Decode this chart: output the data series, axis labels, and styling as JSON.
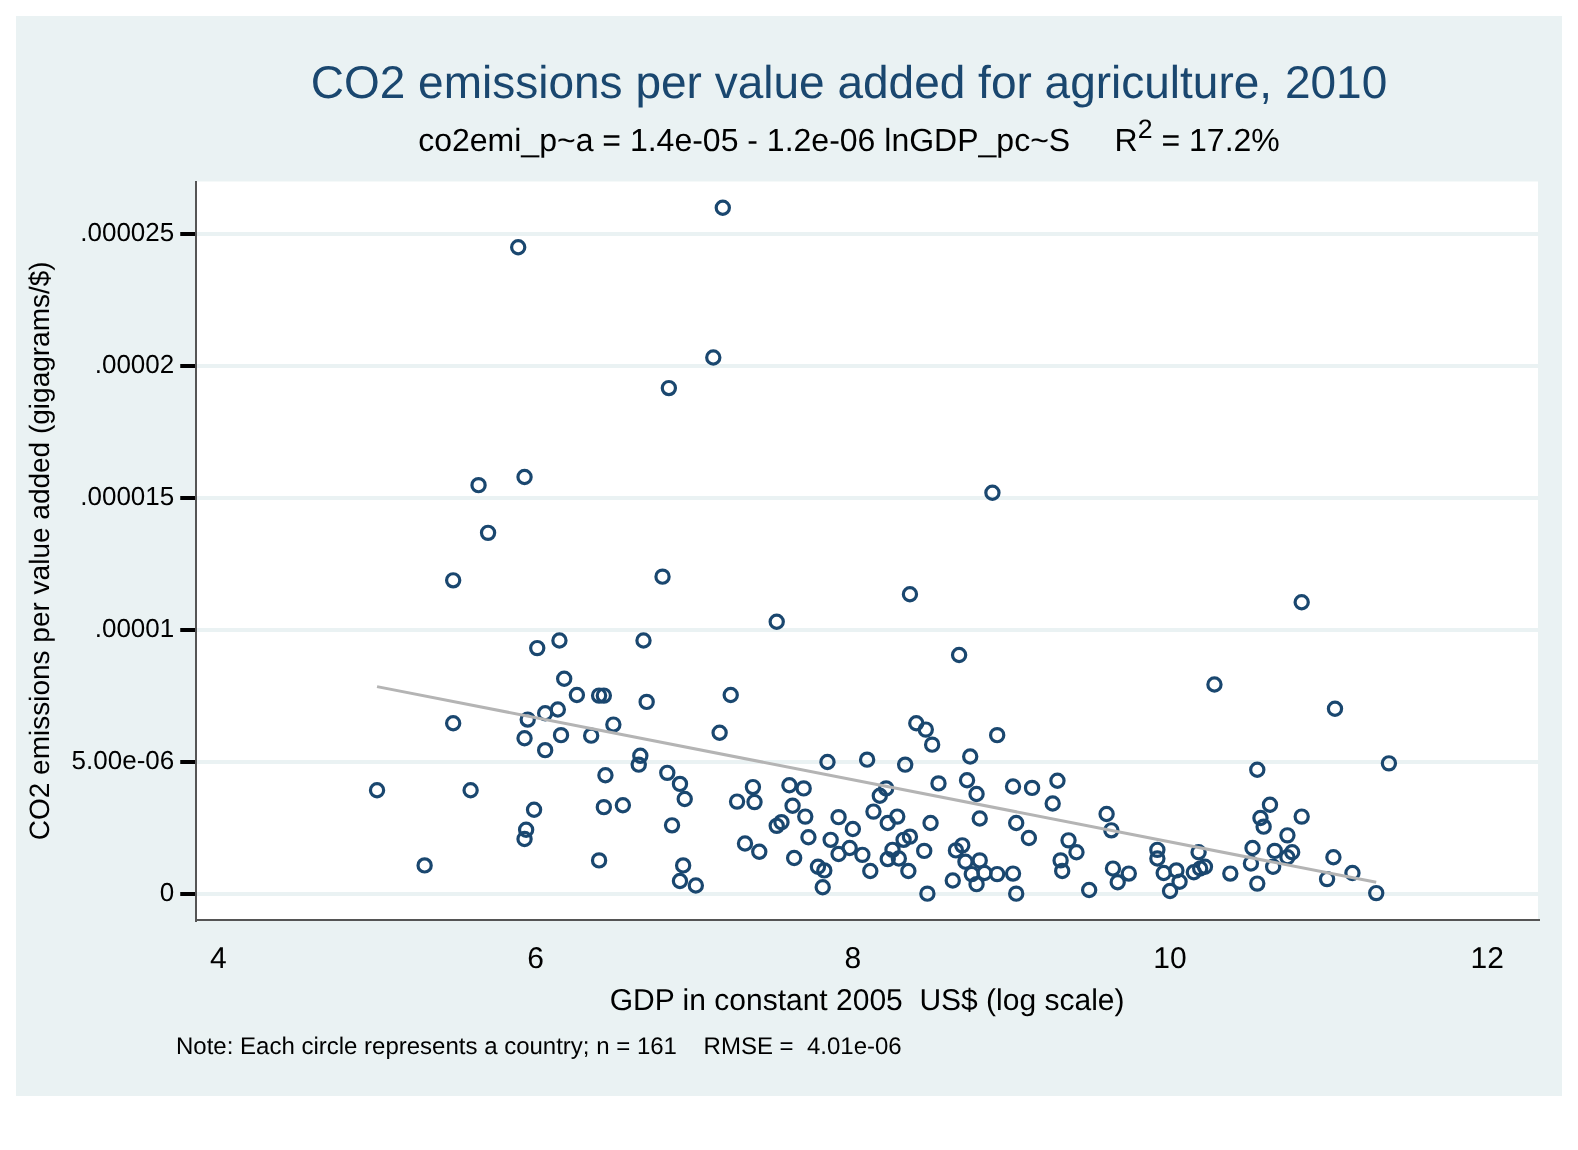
{
  "chart_data": {
    "type": "scatter",
    "title": "CO2 emissions per value added for agriculture, 2010",
    "subtitle": "co2emi_p~a = 1.4e-05 - 1.2e-06 lnGDP_pc~S     R$^{2}$ = 17.2%",
    "xlabel": "GDP in constant 2005  US$ (log scale)",
    "ylabel": "CO2 emissions per value added (gigagrams/$)",
    "annotations": [
      "Note: Each circle represents a country; n = 161    RMSE =  4.01e-06"
    ],
    "xlim": [
      3.86,
      12.32
    ],
    "xticks": [
      4,
      6,
      8,
      10,
      12
    ],
    "ylim": [
      -1e-06,
      2.7e-05
    ],
    "yticks": [
      0,
      {
        "value": 5e-06,
        "label": "5.00e-06"
      },
      {
        "value": 1e-05,
        "label": ".00001"
      },
      {
        "value": 1.5e-05,
        "label": ".000015"
      },
      {
        "value": 2e-05,
        "label": ".00002"
      },
      {
        "value": 2.5e-05,
        "label": ".000025"
      }
    ],
    "grid": "y",
    "legend": false,
    "marker": "circle",
    "series": [
      {
        "type": "scatter",
        "color": "#1a476f",
        "x": [
          5.0,
          5.3,
          5.48,
          5.48,
          5.59,
          5.64,
          5.7,
          5.89,
          5.93,
          5.93,
          5.95,
          5.99,
          5.94,
          5.93,
          6.01,
          6.06,
          6.06,
          6.14,
          6.15,
          6.16,
          6.18,
          6.26,
          6.35,
          6.4,
          6.43,
          6.4,
          6.43,
          6.44,
          6.49,
          6.55,
          6.65,
          6.66,
          6.68,
          6.7,
          6.8,
          6.83,
          6.84,
          6.86,
          6.91,
          6.93,
          6.91,
          6.94,
          7.01,
          7.12,
          7.16,
          7.18,
          7.23,
          7.27,
          7.32,
          7.37,
          7.38,
          7.41,
          7.52,
          7.52,
          7.55,
          7.6,
          7.62,
          7.63,
          7.69,
          7.7,
          7.72,
          7.78,
          7.82,
          7.81,
          7.84,
          7.86,
          7.91,
          7.91,
          7.98,
          8.0,
          8.06,
          8.09,
          8.11,
          8.13,
          8.17,
          8.21,
          8.22,
          8.22,
          8.25,
          8.28,
          8.29,
          8.32,
          8.33,
          8.35,
          8.36,
          8.36,
          8.4,
          8.45,
          8.46,
          8.47,
          8.49,
          8.5,
          8.54,
          8.63,
          8.65,
          8.67,
          8.69,
          8.71,
          8.72,
          8.74,
          8.75,
          8.78,
          8.78,
          8.8,
          8.8,
          8.83,
          8.88,
          8.91,
          8.91,
          9.01,
          9.01,
          9.03,
          9.03,
          9.11,
          9.13,
          9.26,
          9.29,
          9.31,
          9.32,
          9.36,
          9.41,
          9.49,
          9.6,
          9.63,
          9.64,
          9.67,
          9.74,
          9.92,
          9.92,
          9.96,
          10.0,
          10.04,
          10.06,
          10.15,
          10.18,
          10.19,
          10.22,
          10.28,
          10.38,
          10.51,
          10.52,
          10.55,
          10.55,
          10.57,
          10.59,
          10.63,
          10.65,
          10.66,
          10.74,
          10.74,
          10.77,
          10.83,
          10.83,
          10.99,
          11.03,
          11.04,
          11.15,
          11.3,
          11.38
        ],
        "values": [
          3.92e-06,
          1.07e-06,
          1.188e-05,
          6.46e-06,
          3.92e-06,
          1.549e-05,
          1.368e-05,
          2.451e-05,
          1.58e-05,
          5.89e-06,
          6.6e-06,
          3.18e-06,
          2.42e-06,
          2.07e-06,
          9.31e-06,
          6.84e-06,
          5.44e-06,
          6.98e-06,
          9.6e-06,
          6.01e-06,
          8.15e-06,
          7.53e-06,
          5.99e-06,
          7.51e-06,
          7.51e-06,
          1.26e-06,
          3.28e-06,
          4.49e-06,
          6.41e-06,
          3.35e-06,
          4.89e-06,
          5.23e-06,
          9.6e-06,
          7.27e-06,
          1.202e-05,
          4.58e-06,
          1.917e-05,
          2.59e-06,
          4.16e-06,
          1.07e-06,
          4.8e-07,
          3.59e-06,
          3.1e-07,
          2.033e-05,
          6.1e-06,
          2.601e-05,
          7.53e-06,
          3.49e-06,
          1.9e-06,
          4.04e-06,
          3.47e-06,
          1.59e-06,
          1.031e-05,
          2.57e-06,
          2.71e-06,
          4.11e-06,
          3.33e-06,
          1.35e-06,
          3.99e-06,
          2.92e-06,
          2.14e-06,
          1.02e-06,
          8.8e-07,
          2.4e-07,
          4.99e-06,
          2.04e-06,
          2.9e-06,
          1.5e-06,
          1.73e-06,
          2.45e-06,
          1.47e-06,
          5.08e-06,
          8.6e-07,
          3.11e-06,
          3.71e-06,
          3.99e-06,
          2.68e-06,
          1.31e-06,
          1.66e-06,
          2.92e-06,
          1.33e-06,
          2.04e-06,
          4.89e-06,
          8.6e-07,
          1.135e-05,
          2.16e-06,
          6.46e-06,
          1.62e-06,
          6.22e-06,
          0,
          2.68e-06,
          5.65e-06,
          4.18e-06,
          5e-07,
          1.64e-06,
          9.05e-06,
          1.83e-06,
          1.21e-06,
          4.3e-06,
          5.2e-06,
          7.4e-07,
          3.78e-06,
          3.6e-07,
          2.85e-06,
          1.26e-06,
          7.8e-07,
          1.52e-05,
          6.01e-06,
          7.4e-07,
          7.6e-07,
          4.06e-06,
          2.68e-06,
          0,
          2.11e-06,
          4.01e-06,
          3.42e-06,
          4.28e-06,
          1.26e-06,
          8.6e-07,
          2.02e-06,
          1.57e-06,
          1.4e-07,
          3.02e-06,
          2.4e-06,
          9.5e-07,
          4.3e-07,
          7.6e-07,
          1.66e-06,
          1.33e-06,
          7.8e-07,
          1e-07,
          8.8e-07,
          4.5e-07,
          8.1e-07,
          1.57e-06,
          9.5e-07,
          1.02e-06,
          7.93e-06,
          7.6e-07,
          1.14e-06,
          1.73e-06,
          4.7e-06,
          3.8e-07,
          2.87e-06,
          2.54e-06,
          3.37e-06,
          1.02e-06,
          1.62e-06,
          2.21e-06,
          1.38e-06,
          1.57e-06,
          2.92e-06,
          1.105e-05,
          5.5e-07,
          1.38e-06,
          7.01e-06,
          7.8e-07,
          2e-08,
          4.94e-06
        ]
      },
      {
        "type": "line",
        "color": "#b4b4b4",
        "marker": "none",
        "x": [
          5.0,
          11.3
        ],
        "values": [
          7.85e-06,
          4.3e-07
        ]
      }
    ]
  }
}
